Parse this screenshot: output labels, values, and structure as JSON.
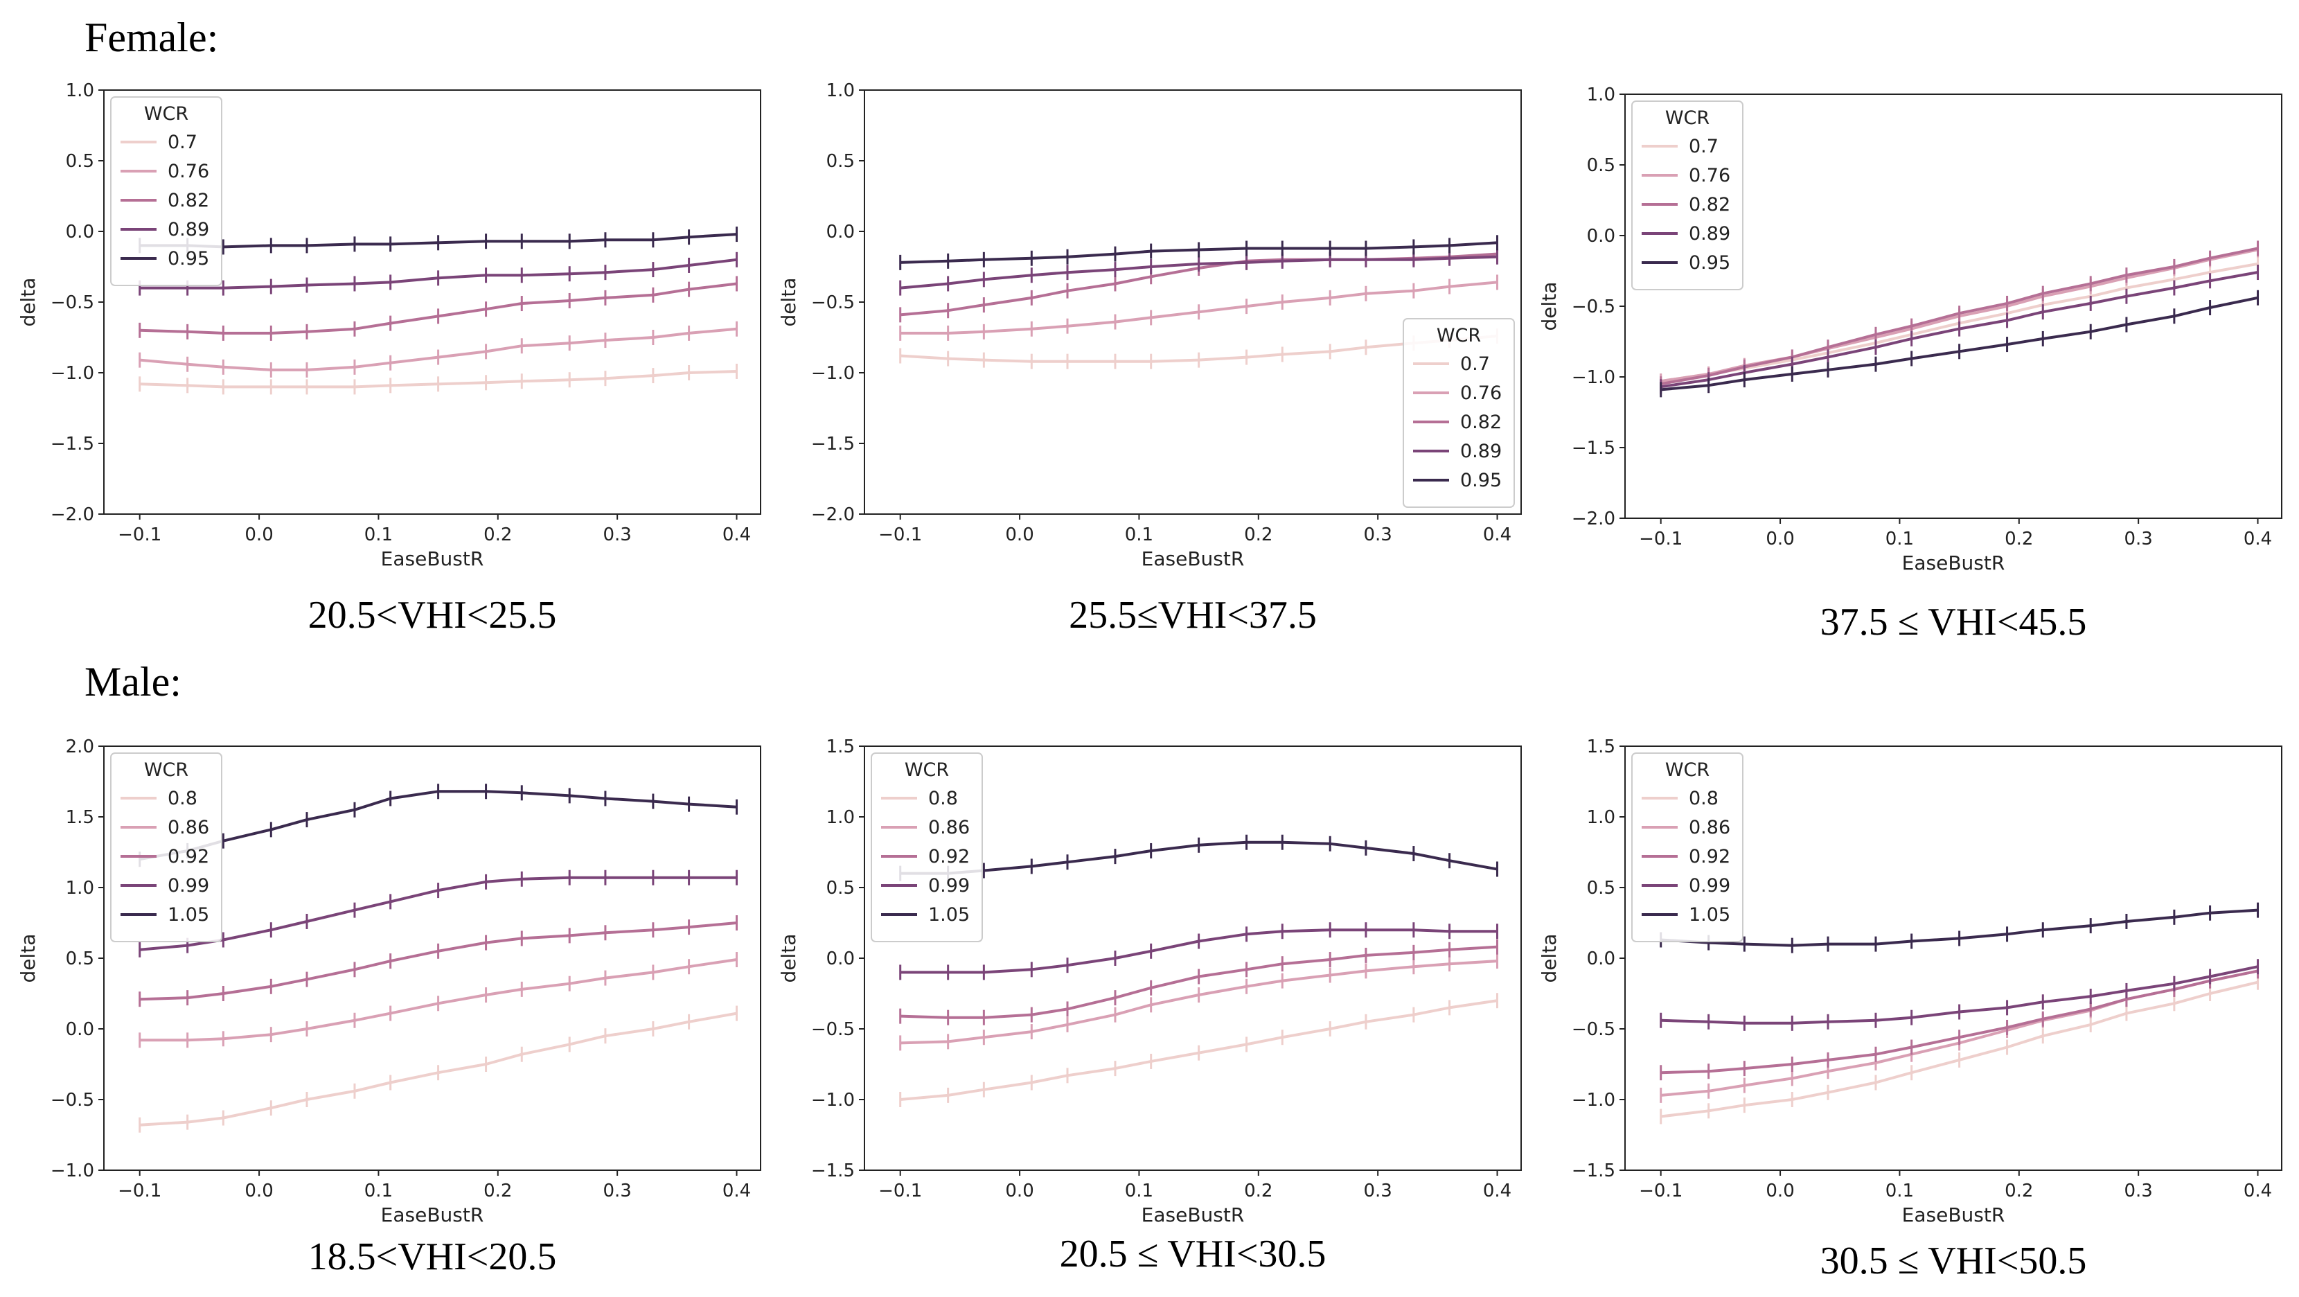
{
  "sections": {
    "female": "Female:",
    "male": "Male:"
  },
  "colors": [
    "#eecfcc",
    "#d9a0b4",
    "#b56f95",
    "#7a4478",
    "#3a2a4e"
  ],
  "chart_data": [
    {
      "type": "line",
      "group": "female",
      "caption": "20.5<VHI<25.5",
      "xlabel": "EaseBustR",
      "ylabel": "delta",
      "xlim": [
        -0.13,
        0.42
      ],
      "ylim": [
        -2.0,
        1.0
      ],
      "xticks": [
        "-0.1",
        "0.0",
        "0.1",
        "0.2",
        "0.3",
        "0.4"
      ],
      "xtick_values": [
        -0.1,
        0.0,
        0.1,
        0.2,
        0.3,
        0.4
      ],
      "yticks": [
        "-2.0",
        "-1.5",
        "-1.0",
        "-0.5",
        "0.0",
        "0.5",
        "1.0"
      ],
      "ytick_values": [
        -2.0,
        -1.5,
        -1.0,
        -0.5,
        0.0,
        0.5,
        1.0
      ],
      "legend": {
        "title": "WCR",
        "position": "upper-left"
      },
      "x": [
        -0.1,
        -0.06,
        -0.03,
        0.01,
        0.04,
        0.08,
        0.11,
        0.15,
        0.19,
        0.22,
        0.26,
        0.29,
        0.33,
        0.36,
        0.4
      ],
      "series": [
        {
          "name": "0.7",
          "values": [
            -1.08,
            -1.09,
            -1.1,
            -1.1,
            -1.1,
            -1.1,
            -1.09,
            -1.08,
            -1.07,
            -1.06,
            -1.05,
            -1.04,
            -1.02,
            -1.0,
            -0.99
          ]
        },
        {
          "name": "0.76",
          "values": [
            -0.91,
            -0.94,
            -0.96,
            -0.98,
            -0.98,
            -0.96,
            -0.93,
            -0.89,
            -0.85,
            -0.81,
            -0.79,
            -0.77,
            -0.75,
            -0.72,
            -0.69
          ]
        },
        {
          "name": "0.82",
          "values": [
            -0.7,
            -0.71,
            -0.72,
            -0.72,
            -0.71,
            -0.69,
            -0.65,
            -0.6,
            -0.55,
            -0.51,
            -0.49,
            -0.47,
            -0.45,
            -0.41,
            -0.37
          ]
        },
        {
          "name": "0.89",
          "values": [
            -0.4,
            -0.4,
            -0.4,
            -0.39,
            -0.38,
            -0.37,
            -0.36,
            -0.33,
            -0.31,
            -0.31,
            -0.3,
            -0.29,
            -0.27,
            -0.24,
            -0.2
          ]
        },
        {
          "name": "0.95",
          "values": [
            -0.1,
            -0.1,
            -0.11,
            -0.1,
            -0.1,
            -0.09,
            -0.09,
            -0.08,
            -0.07,
            -0.07,
            -0.07,
            -0.06,
            -0.06,
            -0.04,
            -0.02
          ]
        }
      ]
    },
    {
      "type": "line",
      "group": "female",
      "caption": "25.5≤VHI<37.5",
      "xlabel": "EaseBustR",
      "ylabel": "delta",
      "xlim": [
        -0.13,
        0.42
      ],
      "ylim": [
        -2.0,
        1.0
      ],
      "xticks": [
        "-0.1",
        "0.0",
        "0.1",
        "0.2",
        "0.3",
        "0.4"
      ],
      "xtick_values": [
        -0.1,
        0.0,
        0.1,
        0.2,
        0.3,
        0.4
      ],
      "yticks": [
        "-2.0",
        "-1.5",
        "-1.0",
        "-0.5",
        "0.0",
        "0.5",
        "1.0"
      ],
      "ytick_values": [
        -2.0,
        -1.5,
        -1.0,
        -0.5,
        0.0,
        0.5,
        1.0
      ],
      "legend": {
        "title": "WCR",
        "position": "lower-right"
      },
      "x": [
        -0.1,
        -0.06,
        -0.03,
        0.01,
        0.04,
        0.08,
        0.11,
        0.15,
        0.19,
        0.22,
        0.26,
        0.29,
        0.33,
        0.36,
        0.4
      ],
      "series": [
        {
          "name": "0.7",
          "values": [
            -0.88,
            -0.9,
            -0.91,
            -0.92,
            -0.92,
            -0.92,
            -0.92,
            -0.91,
            -0.89,
            -0.87,
            -0.85,
            -0.82,
            -0.79,
            -0.77,
            -0.74
          ]
        },
        {
          "name": "0.76",
          "values": [
            -0.72,
            -0.72,
            -0.71,
            -0.69,
            -0.67,
            -0.64,
            -0.61,
            -0.57,
            -0.53,
            -0.5,
            -0.47,
            -0.44,
            -0.42,
            -0.39,
            -0.36
          ]
        },
        {
          "name": "0.82",
          "values": [
            -0.59,
            -0.56,
            -0.52,
            -0.47,
            -0.42,
            -0.37,
            -0.32,
            -0.26,
            -0.21,
            -0.2,
            -0.2,
            -0.2,
            -0.19,
            -0.18,
            -0.16
          ]
        },
        {
          "name": "0.89",
          "values": [
            -0.4,
            -0.37,
            -0.34,
            -0.31,
            -0.29,
            -0.27,
            -0.25,
            -0.23,
            -0.22,
            -0.21,
            -0.2,
            -0.2,
            -0.2,
            -0.19,
            -0.18
          ]
        },
        {
          "name": "0.95",
          "values": [
            -0.22,
            -0.21,
            -0.2,
            -0.19,
            -0.18,
            -0.16,
            -0.14,
            -0.13,
            -0.12,
            -0.12,
            -0.12,
            -0.12,
            -0.11,
            -0.1,
            -0.08
          ]
        }
      ]
    },
    {
      "type": "line",
      "group": "female",
      "caption": "37.5 ≤ VHI<45.5",
      "xlabel": "EaseBustR",
      "ylabel": "delta",
      "xlim": [
        -0.13,
        0.42
      ],
      "ylim": [
        -2.0,
        1.0
      ],
      "xticks": [
        "-0.1",
        "0.0",
        "0.1",
        "0.2",
        "0.3",
        "0.4"
      ],
      "xtick_values": [
        -0.1,
        0.0,
        0.1,
        0.2,
        0.3,
        0.4
      ],
      "yticks": [
        "-2.0",
        "-1.5",
        "-1.0",
        "-0.5",
        "0.0",
        "0.5",
        "1.0"
      ],
      "ytick_values": [
        -2.0,
        -1.5,
        -1.0,
        -0.5,
        0.0,
        0.5,
        1.0
      ],
      "legend": {
        "title": "WCR",
        "position": "upper-left"
      },
      "x": [
        -0.1,
        -0.06,
        -0.03,
        0.01,
        0.04,
        0.08,
        0.11,
        0.15,
        0.19,
        0.22,
        0.26,
        0.29,
        0.33,
        0.36,
        0.4
      ],
      "series": [
        {
          "name": "0.7",
          "values": [
            -1.03,
            -0.98,
            -0.94,
            -0.88,
            -0.83,
            -0.76,
            -0.7,
            -0.62,
            -0.55,
            -0.49,
            -0.43,
            -0.37,
            -0.31,
            -0.26,
            -0.2
          ]
        },
        {
          "name": "0.76",
          "values": [
            -1.03,
            -0.98,
            -0.92,
            -0.86,
            -0.8,
            -0.72,
            -0.66,
            -0.57,
            -0.5,
            -0.43,
            -0.36,
            -0.3,
            -0.23,
            -0.17,
            -0.1
          ]
        },
        {
          "name": "0.82",
          "values": [
            -1.05,
            -0.99,
            -0.93,
            -0.86,
            -0.79,
            -0.7,
            -0.64,
            -0.55,
            -0.48,
            -0.41,
            -0.34,
            -0.28,
            -0.22,
            -0.16,
            -0.09
          ]
        },
        {
          "name": "0.89",
          "values": [
            -1.07,
            -1.02,
            -0.97,
            -0.91,
            -0.86,
            -0.79,
            -0.73,
            -0.66,
            -0.6,
            -0.54,
            -0.48,
            -0.43,
            -0.37,
            -0.32,
            -0.26
          ]
        },
        {
          "name": "0.95",
          "values": [
            -1.09,
            -1.06,
            -1.02,
            -0.98,
            -0.95,
            -0.91,
            -0.87,
            -0.82,
            -0.77,
            -0.73,
            -0.68,
            -0.63,
            -0.57,
            -0.51,
            -0.44
          ]
        }
      ]
    },
    {
      "type": "line",
      "group": "male",
      "caption": "18.5<VHI<20.5",
      "xlabel": "EaseBustR",
      "ylabel": "delta",
      "xlim": [
        -0.13,
        0.42
      ],
      "ylim": [
        -1.0,
        2.0
      ],
      "xticks": [
        "-0.1",
        "0.0",
        "0.1",
        "0.2",
        "0.3",
        "0.4"
      ],
      "xtick_values": [
        -0.1,
        0.0,
        0.1,
        0.2,
        0.3,
        0.4
      ],
      "yticks": [
        "-1.0",
        "-0.5",
        "0.0",
        "0.5",
        "1.0",
        "1.5",
        "2.0"
      ],
      "ytick_values": [
        -1.0,
        -0.5,
        0.0,
        0.5,
        1.0,
        1.5,
        2.0
      ],
      "legend": {
        "title": "WCR",
        "position": "upper-left"
      },
      "x": [
        -0.1,
        -0.06,
        -0.03,
        0.01,
        0.04,
        0.08,
        0.11,
        0.15,
        0.19,
        0.22,
        0.26,
        0.29,
        0.33,
        0.36,
        0.4
      ],
      "series": [
        {
          "name": "0.8",
          "values": [
            -0.68,
            -0.66,
            -0.63,
            -0.56,
            -0.5,
            -0.44,
            -0.38,
            -0.31,
            -0.25,
            -0.18,
            -0.11,
            -0.05,
            0.0,
            0.05,
            0.11
          ]
        },
        {
          "name": "0.86",
          "values": [
            -0.08,
            -0.08,
            -0.07,
            -0.04,
            0.0,
            0.06,
            0.11,
            0.18,
            0.24,
            0.28,
            0.32,
            0.36,
            0.4,
            0.44,
            0.49
          ]
        },
        {
          "name": "0.92",
          "values": [
            0.21,
            0.22,
            0.25,
            0.3,
            0.35,
            0.42,
            0.48,
            0.55,
            0.61,
            0.64,
            0.66,
            0.68,
            0.7,
            0.72,
            0.75
          ]
        },
        {
          "name": "0.99",
          "values": [
            0.56,
            0.59,
            0.63,
            0.7,
            0.76,
            0.84,
            0.9,
            0.98,
            1.04,
            1.06,
            1.07,
            1.07,
            1.07,
            1.07,
            1.07
          ]
        },
        {
          "name": "1.05",
          "values": [
            1.2,
            1.26,
            1.33,
            1.41,
            1.48,
            1.55,
            1.63,
            1.68,
            1.68,
            1.67,
            1.65,
            1.63,
            1.61,
            1.59,
            1.57
          ]
        }
      ]
    },
    {
      "type": "line",
      "group": "male",
      "caption": "20.5 ≤ VHI<30.5",
      "xlabel": "EaseBustR",
      "ylabel": "delta",
      "xlim": [
        -0.13,
        0.42
      ],
      "ylim": [
        -1.5,
        1.5
      ],
      "xticks": [
        "-0.1",
        "0.0",
        "0.1",
        "0.2",
        "0.3",
        "0.4"
      ],
      "xtick_values": [
        -0.1,
        0.0,
        0.1,
        0.2,
        0.3,
        0.4
      ],
      "yticks": [
        "-1.5",
        "-1.0",
        "-0.5",
        "0.0",
        "0.5",
        "1.0",
        "1.5"
      ],
      "ytick_values": [
        -1.5,
        -1.0,
        -0.5,
        0.0,
        0.5,
        1.0,
        1.5
      ],
      "legend": {
        "title": "WCR",
        "position": "upper-left"
      },
      "x": [
        -0.1,
        -0.06,
        -0.03,
        0.01,
        0.04,
        0.08,
        0.11,
        0.15,
        0.19,
        0.22,
        0.26,
        0.29,
        0.33,
        0.36,
        0.4
      ],
      "series": [
        {
          "name": "0.8",
          "values": [
            -1.0,
            -0.97,
            -0.93,
            -0.88,
            -0.83,
            -0.78,
            -0.73,
            -0.67,
            -0.61,
            -0.56,
            -0.5,
            -0.45,
            -0.4,
            -0.35,
            -0.3
          ]
        },
        {
          "name": "0.86",
          "values": [
            -0.6,
            -0.59,
            -0.56,
            -0.52,
            -0.47,
            -0.4,
            -0.33,
            -0.26,
            -0.2,
            -0.16,
            -0.12,
            -0.09,
            -0.06,
            -0.04,
            -0.02
          ]
        },
        {
          "name": "0.92",
          "values": [
            -0.41,
            -0.42,
            -0.42,
            -0.4,
            -0.36,
            -0.28,
            -0.21,
            -0.13,
            -0.08,
            -0.04,
            -0.01,
            0.02,
            0.04,
            0.06,
            0.08
          ]
        },
        {
          "name": "0.99",
          "values": [
            -0.1,
            -0.1,
            -0.1,
            -0.08,
            -0.05,
            0.0,
            0.05,
            0.12,
            0.17,
            0.19,
            0.2,
            0.2,
            0.2,
            0.19,
            0.19
          ]
        },
        {
          "name": "1.05",
          "values": [
            0.6,
            0.6,
            0.62,
            0.65,
            0.68,
            0.72,
            0.76,
            0.8,
            0.82,
            0.82,
            0.81,
            0.78,
            0.74,
            0.69,
            0.63
          ]
        }
      ]
    },
    {
      "type": "line",
      "group": "male",
      "caption": "30.5 ≤ VHI<50.5",
      "xlabel": "EaseBustR",
      "ylabel": "delta",
      "xlim": [
        -0.13,
        0.42
      ],
      "ylim": [
        -1.5,
        1.5
      ],
      "xticks": [
        "-0.1",
        "0.0",
        "0.1",
        "0.2",
        "0.3",
        "0.4"
      ],
      "xtick_values": [
        -0.1,
        0.0,
        0.1,
        0.2,
        0.3,
        0.4
      ],
      "yticks": [
        "-1.5",
        "-1.0",
        "-0.5",
        "0.0",
        "0.5",
        "1.0",
        "1.5"
      ],
      "ytick_values": [
        -1.5,
        -1.0,
        -0.5,
        0.0,
        0.5,
        1.0,
        1.5
      ],
      "legend": {
        "title": "WCR",
        "position": "upper-left"
      },
      "x": [
        -0.1,
        -0.06,
        -0.03,
        0.01,
        0.04,
        0.08,
        0.11,
        0.15,
        0.19,
        0.22,
        0.26,
        0.29,
        0.33,
        0.36,
        0.4
      ],
      "series": [
        {
          "name": "0.8",
          "values": [
            -1.12,
            -1.08,
            -1.04,
            -1.0,
            -0.95,
            -0.88,
            -0.81,
            -0.72,
            -0.63,
            -0.55,
            -0.47,
            -0.39,
            -0.32,
            -0.25,
            -0.17
          ]
        },
        {
          "name": "0.86",
          "values": [
            -0.97,
            -0.94,
            -0.9,
            -0.85,
            -0.8,
            -0.74,
            -0.68,
            -0.6,
            -0.51,
            -0.44,
            -0.37,
            -0.29,
            -0.22,
            -0.16,
            -0.09
          ]
        },
        {
          "name": "0.92",
          "values": [
            -0.81,
            -0.8,
            -0.78,
            -0.75,
            -0.72,
            -0.68,
            -0.63,
            -0.56,
            -0.49,
            -0.43,
            -0.36,
            -0.29,
            -0.22,
            -0.16,
            -0.09
          ]
        },
        {
          "name": "0.99",
          "values": [
            -0.44,
            -0.45,
            -0.46,
            -0.46,
            -0.45,
            -0.44,
            -0.42,
            -0.38,
            -0.35,
            -0.31,
            -0.27,
            -0.23,
            -0.18,
            -0.13,
            -0.06
          ]
        },
        {
          "name": "1.05",
          "values": [
            0.13,
            0.11,
            0.1,
            0.09,
            0.1,
            0.1,
            0.12,
            0.14,
            0.17,
            0.2,
            0.23,
            0.26,
            0.29,
            0.32,
            0.34
          ]
        }
      ]
    }
  ]
}
